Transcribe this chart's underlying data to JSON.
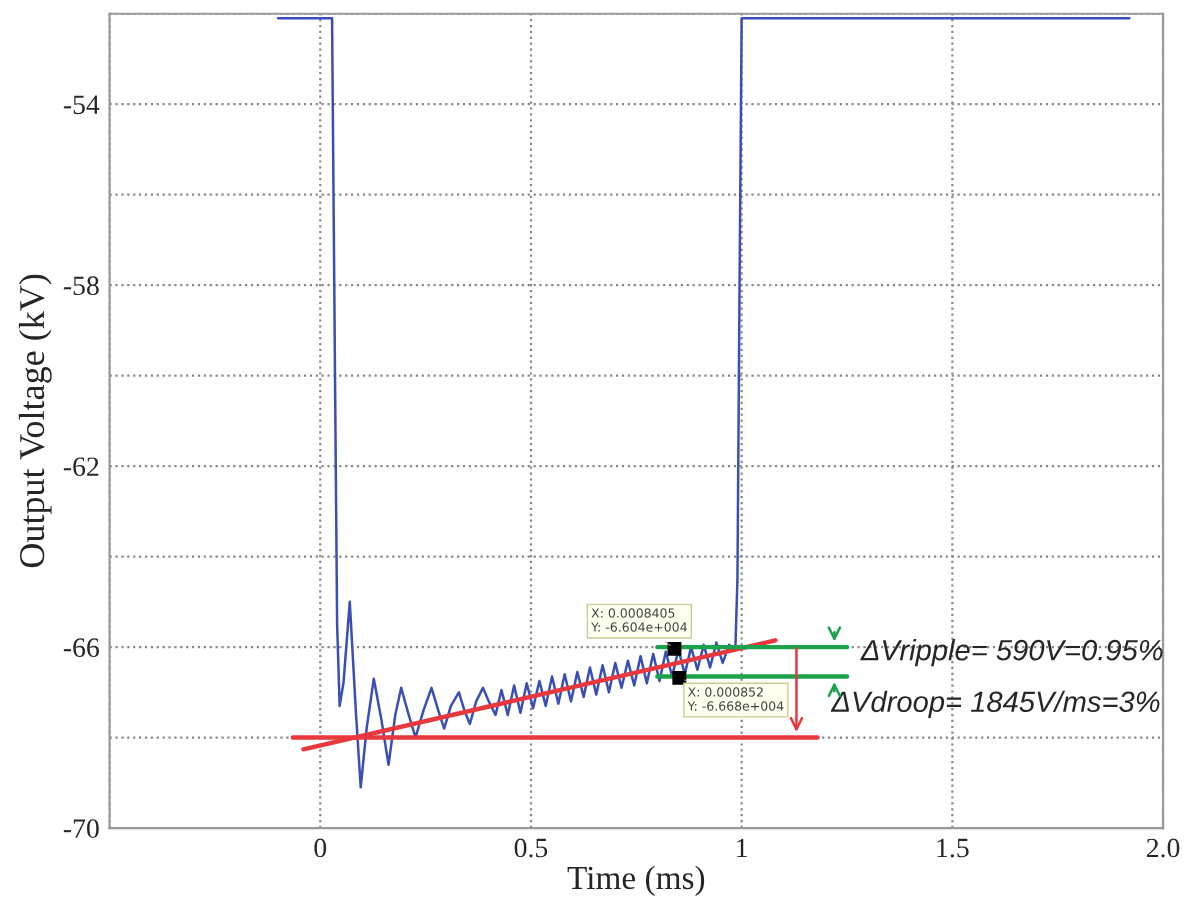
{
  "chart_data": {
    "type": "line",
    "xlabel": "Time (ms)",
    "ylabel": "Output Voltage (kV)",
    "xlim": [
      -0.5,
      2
    ],
    "ylim": [
      -70,
      -52
    ],
    "xticks": [
      {
        "value": -0.5,
        "label": null
      },
      0,
      0.5,
      1,
      1.5,
      {
        "value": 2,
        "label": "2.0"
      }
    ],
    "yticks": [
      -70,
      {
        "value": -68,
        "label": null
      },
      -66,
      {
        "value": -64,
        "label": null
      },
      -62,
      {
        "value": -60,
        "label": null
      },
      -58,
      {
        "value": -56,
        "label": null
      },
      -54,
      {
        "value": -52,
        "label": null
      }
    ],
    "grid": true,
    "line_style": "solid",
    "marker": "none",
    "series": [
      {
        "color": "#3a4fb5",
        "x": [
          -0.1,
          0.028,
          0.035,
          0.04,
          0.046,
          0.055,
          0.07,
          0.085,
          0.096,
          0.11,
          0.127,
          0.145,
          0.162,
          0.178,
          0.192,
          0.21,
          0.226,
          0.245,
          0.264,
          0.28,
          0.294,
          0.31,
          0.329,
          0.342,
          0.355,
          0.37,
          0.386,
          0.4,
          0.416,
          0.43,
          0.445,
          0.46,
          0.475,
          0.49,
          0.505,
          0.52,
          0.535,
          0.55,
          0.565,
          0.58,
          0.595,
          0.61,
          0.625,
          0.64,
          0.655,
          0.67,
          0.685,
          0.7,
          0.715,
          0.73,
          0.745,
          0.76,
          0.775,
          0.79,
          0.805,
          0.82,
          0.835,
          0.85,
          0.865,
          0.88,
          0.895,
          0.91,
          0.925,
          0.94,
          0.955,
          0.97,
          0.985,
          0.99,
          0.995,
          1.0,
          1.92
        ],
        "values": [
          -52.1,
          -52.1,
          -60,
          -65.5,
          -67.3,
          -66.8,
          -65.0,
          -67.5,
          -69.1,
          -67.8,
          -66.7,
          -67.6,
          -68.6,
          -67.5,
          -66.9,
          -67.5,
          -68.0,
          -67.4,
          -66.9,
          -67.4,
          -67.8,
          -67.3,
          -67.0,
          -67.4,
          -67.7,
          -67.2,
          -66.9,
          -67.2,
          -67.5,
          -66.95,
          -67.5,
          -66.85,
          -67.45,
          -66.8,
          -67.35,
          -66.75,
          -67.3,
          -66.65,
          -67.25,
          -66.6,
          -67.2,
          -66.55,
          -67.1,
          -66.45,
          -67.05,
          -66.4,
          -67.0,
          -66.35,
          -66.9,
          -66.3,
          -66.85,
          -66.2,
          -66.8,
          -66.15,
          -66.75,
          -66.1,
          -66.65,
          -66.05,
          -66.6,
          -66.0,
          -66.5,
          -65.95,
          -66.45,
          -65.9,
          -66.35,
          -65.95,
          -66.05,
          -64.5,
          -58,
          -52.1,
          -52.1
        ]
      },
      {
        "color": "#e8383d",
        "x": [
          -0.04,
          1.08
        ],
        "values": [
          -68.26,
          -65.85
        ]
      },
      {
        "color": "#e8383d",
        "x": [
          -0.065,
          1.18
        ],
        "values": [
          -68.0,
          -68.0
        ]
      },
      {
        "color": "#1aa34a",
        "x": [
          0.8,
          1.25
        ],
        "values": [
          -66.0,
          -66.0
        ]
      },
      {
        "color": "#1aa34a",
        "x": [
          0.8,
          1.25
        ],
        "values": [
          -66.65,
          -66.65
        ]
      }
    ],
    "annotations": [
      {
        "text": "X: 0.0008405\nY: -6.604e+004",
        "x": 0.8405,
        "y": -66.04
      },
      {
        "text": "X: 0.000852\nY: -6.668e+004",
        "x": 0.852,
        "y": -66.68
      },
      {
        "text": "ΔVripple= 590V=0.95%",
        "x": 1.25,
        "y": -66.0
      },
      {
        "text": "ΔVdroop= 1845V/ms=3%",
        "x": 1.18,
        "y": -66.65
      }
    ]
  }
}
